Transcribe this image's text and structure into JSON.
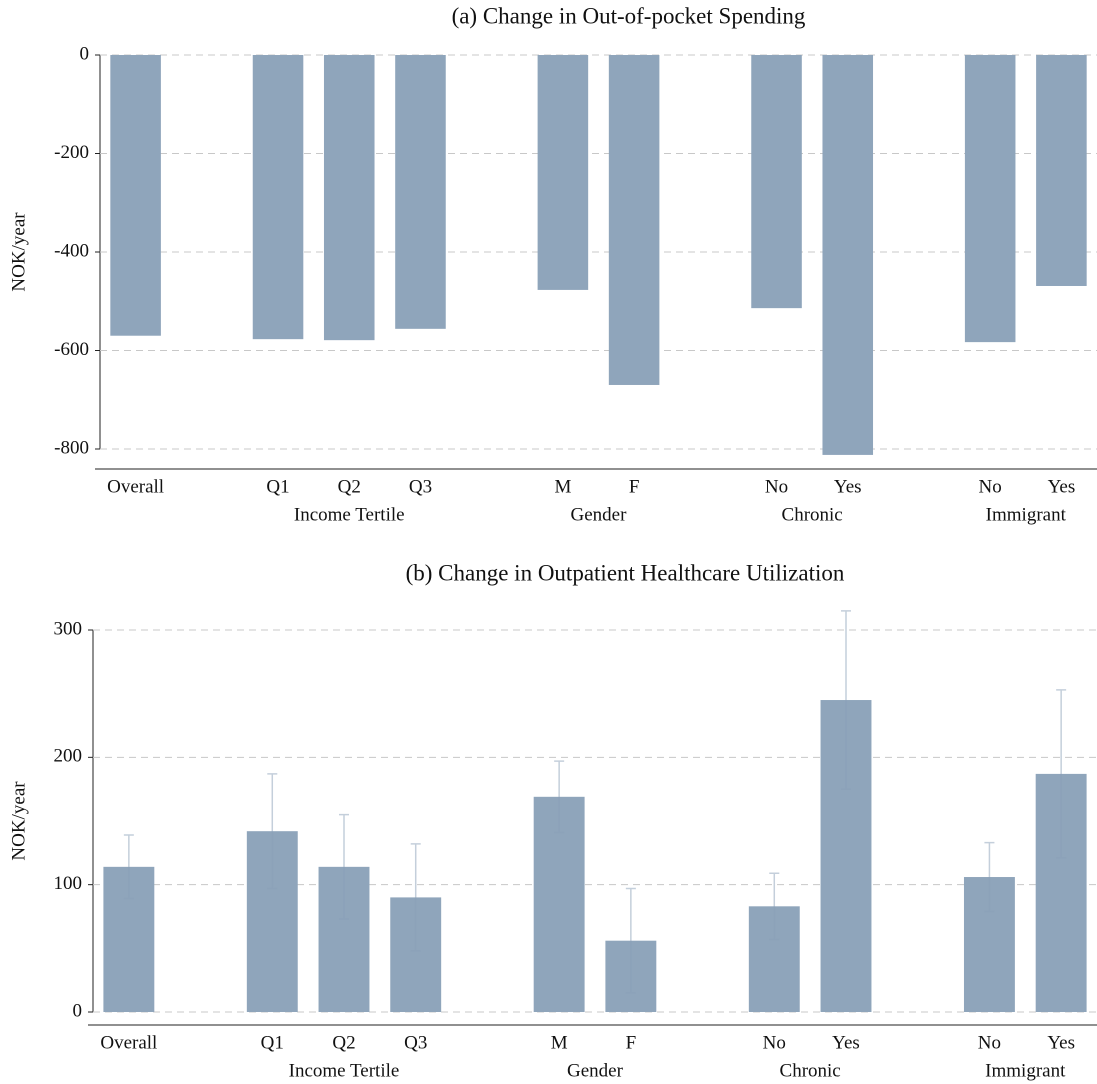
{
  "chart_data": [
    {
      "type": "bar",
      "title": "(a) Change in Out-of-pocket Spending",
      "y_label": "NOK/year",
      "color": "#8fa5bb",
      "error_color": "#7f95ab",
      "ylim": [
        -800,
        0
      ],
      "yticks": [
        0,
        -200,
        -400,
        -600,
        -800
      ],
      "grid": true,
      "groups": [
        {
          "categories": [
            "Overall"
          ],
          "values": [
            -570
          ]
        },
        {
          "name": "Income Tertile",
          "categories": [
            "Q1",
            "Q2",
            "Q3"
          ],
          "values": [
            -577,
            -579,
            -556
          ]
        },
        {
          "name": "Gender",
          "categories": [
            "M",
            "F"
          ],
          "values": [
            -477,
            -670
          ]
        },
        {
          "name": "Chronic",
          "categories": [
            "No",
            "Yes"
          ],
          "values": [
            -514,
            -812
          ]
        },
        {
          "name": "Immigrant",
          "categories": [
            "No",
            "Yes"
          ],
          "values": [
            -583,
            -469
          ]
        }
      ]
    },
    {
      "type": "bar",
      "title": "(b) Change in Outpatient Healthcare Utilization",
      "y_label": "NOK/year",
      "color": "#8fa5bb",
      "error_color": "#8aa0b8",
      "ylim": [
        0,
        300
      ],
      "yticks": [
        0,
        100,
        200,
        300
      ],
      "grid": true,
      "groups": [
        {
          "categories": [
            "Overall"
          ],
          "values": [
            114
          ],
          "errors": [
            25
          ]
        },
        {
          "name": "Income Tertile",
          "categories": [
            "Q1",
            "Q2",
            "Q3"
          ],
          "values": [
            142,
            114,
            90
          ],
          "errors": [
            45,
            41,
            42
          ]
        },
        {
          "name": "Gender",
          "categories": [
            "M",
            "F"
          ],
          "values": [
            169,
            56
          ],
          "errors": [
            28,
            41
          ]
        },
        {
          "name": "Chronic",
          "categories": [
            "No",
            "Yes"
          ],
          "values": [
            83,
            245
          ],
          "errors": [
            26,
            70
          ]
        },
        {
          "name": "Immigrant",
          "categories": [
            "No",
            "Yes"
          ],
          "values": [
            106,
            187
          ],
          "errors": [
            27,
            66
          ]
        }
      ]
    }
  ]
}
